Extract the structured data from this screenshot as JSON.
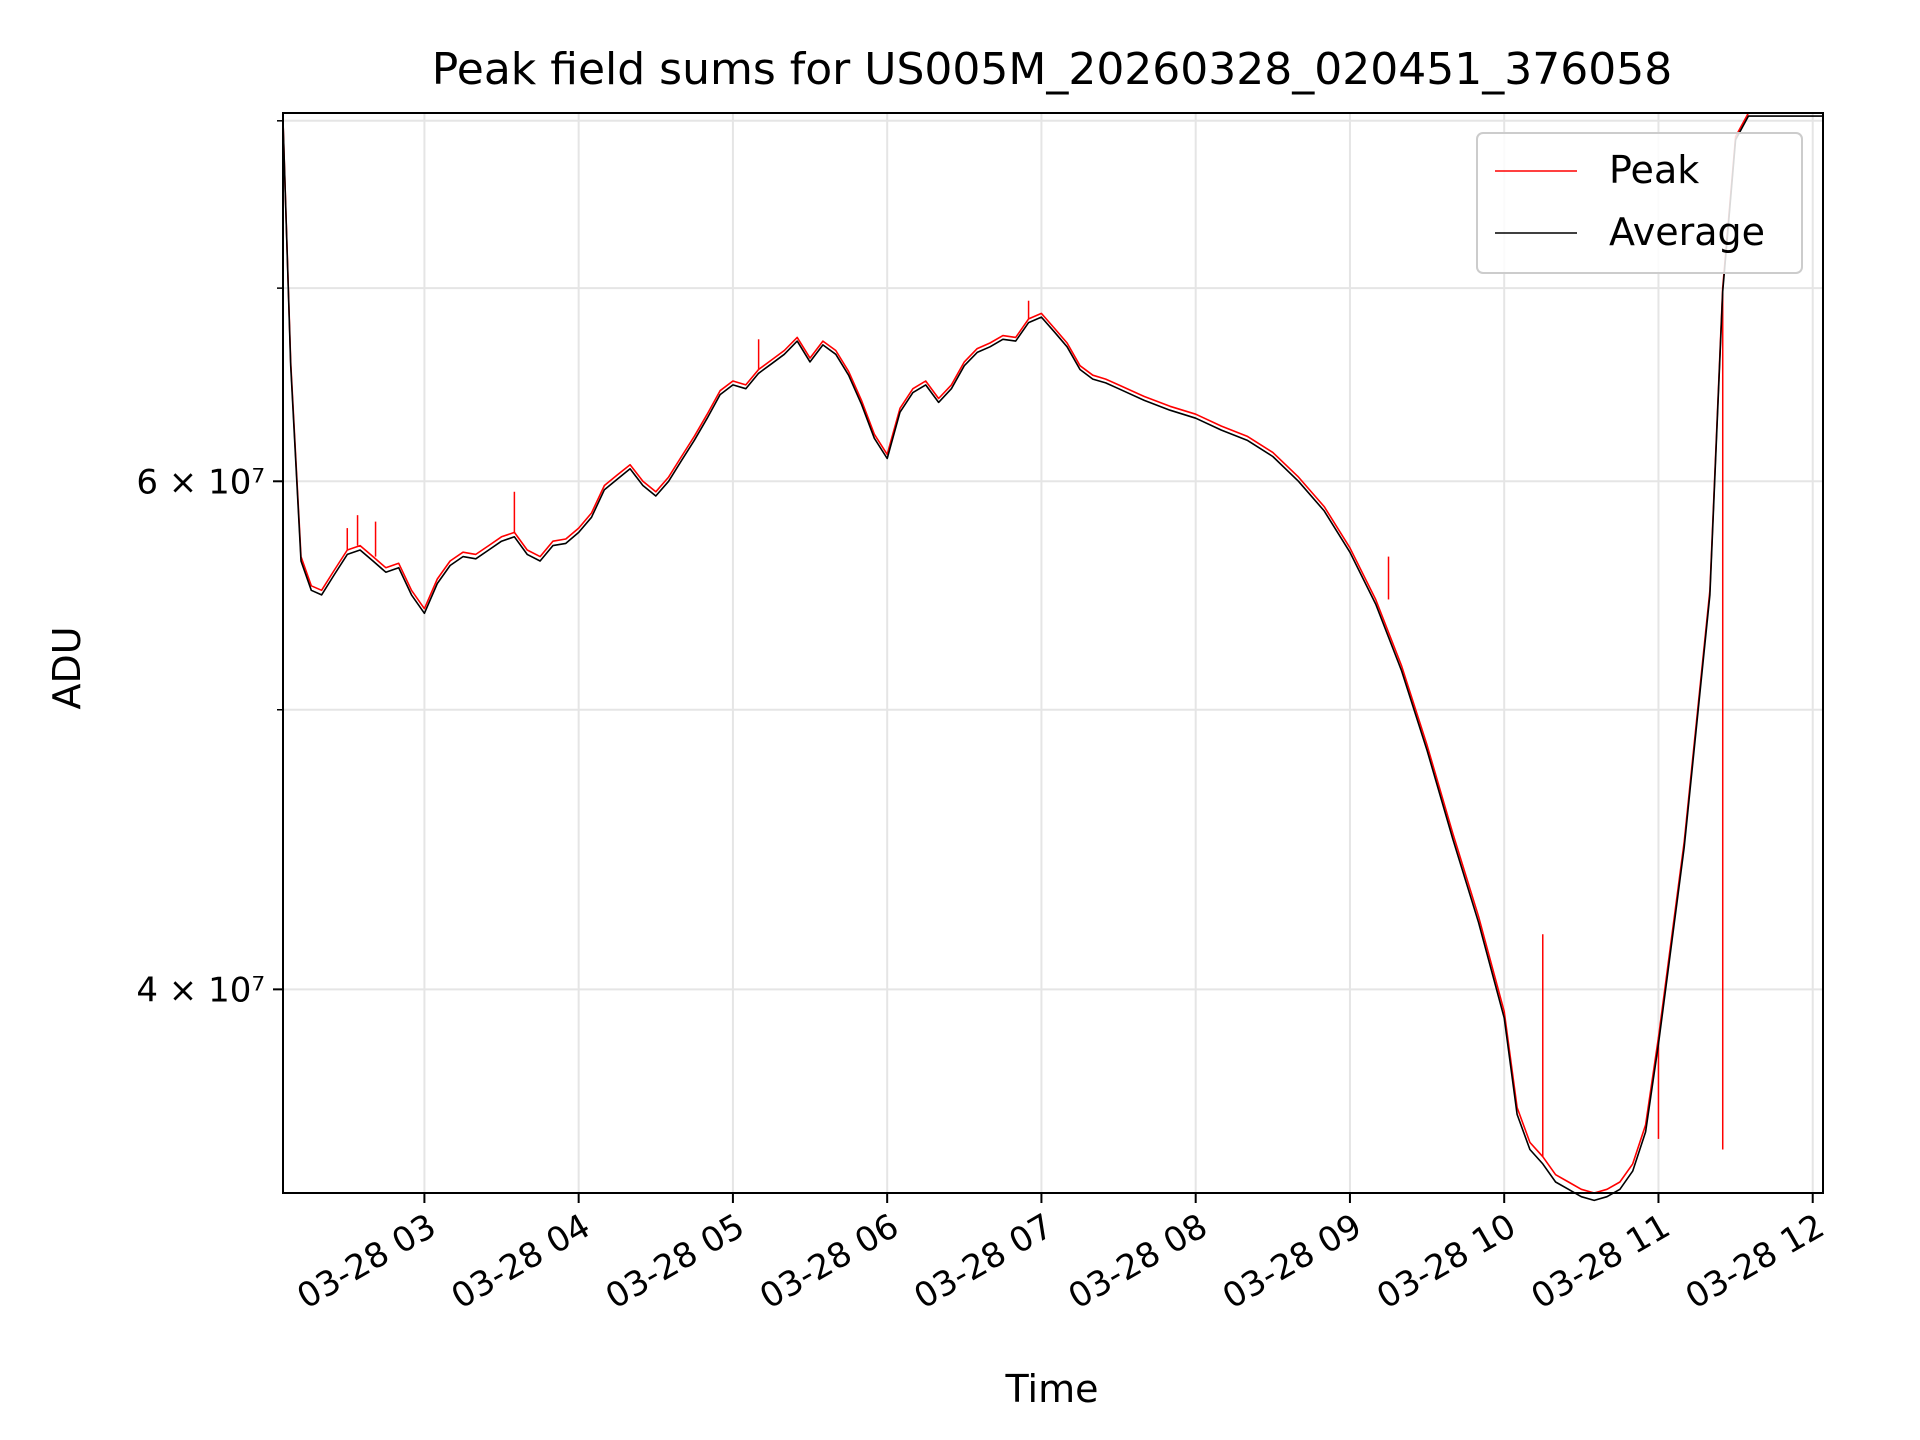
{
  "chart_data": {
    "type": "line",
    "title": "Peak field sums for US005M_20260328_020451_376058",
    "xlabel": "Time",
    "ylabel": "ADU",
    "yscale": "log",
    "ylim": [
      34000000,
      80500000
    ],
    "xlim": [
      "03-28 02:05",
      "03-28 12:04"
    ],
    "xticks": [
      {
        "x": "03-28 03:00",
        "label": "03-28 03"
      },
      {
        "x": "03-28 04:00",
        "label": "03-28 04"
      },
      {
        "x": "03-28 05:00",
        "label": "03-28 05"
      },
      {
        "x": "03-28 06:00",
        "label": "03-28 06"
      },
      {
        "x": "03-28 07:00",
        "label": "03-28 07"
      },
      {
        "x": "03-28 08:00",
        "label": "03-28 08"
      },
      {
        "x": "03-28 09:00",
        "label": "03-28 09"
      },
      {
        "x": "03-28 10:00",
        "label": "03-28 10"
      },
      {
        "x": "03-28 11:00",
        "label": "03-28 11"
      },
      {
        "x": "03-28 12:00",
        "label": "03-28 12"
      }
    ],
    "yticks_major": [
      {
        "value": 40000000,
        "label": "4 × 10⁷"
      },
      {
        "value": 60000000,
        "label": "6 × 10⁷"
      }
    ],
    "yticks_minor": [
      50000000,
      70000000,
      80000000
    ],
    "grid": true,
    "legend": {
      "position": "top-right"
    },
    "series": [
      {
        "name": "Peak",
        "color": "#ff0000",
        "x": [
          "03-28 02:05",
          "03-28 02:08",
          "03-28 02:12",
          "03-28 02:16",
          "03-28 02:20",
          "03-28 02:25",
          "03-28 02:30",
          "03-28 02:35",
          "03-28 02:40",
          "03-28 02:45",
          "03-28 02:50",
          "03-28 02:55",
          "03-28 03:00",
          "03-28 03:05",
          "03-28 03:10",
          "03-28 03:15",
          "03-28 03:20",
          "03-28 03:25",
          "03-28 03:30",
          "03-28 03:35",
          "03-28 03:40",
          "03-28 03:45",
          "03-28 03:50",
          "03-28 03:55",
          "03-28 04:00",
          "03-28 04:05",
          "03-28 04:10",
          "03-28 04:15",
          "03-28 04:20",
          "03-28 04:25",
          "03-28 04:30",
          "03-28 04:35",
          "03-28 04:40",
          "03-28 04:45",
          "03-28 04:50",
          "03-28 04:55",
          "03-28 05:00",
          "03-28 05:05",
          "03-28 05:10",
          "03-28 05:15",
          "03-28 05:20",
          "03-28 05:25",
          "03-28 05:30",
          "03-28 05:35",
          "03-28 05:40",
          "03-28 05:45",
          "03-28 05:50",
          "03-28 05:55",
          "03-28 06:00",
          "03-28 06:05",
          "03-28 06:10",
          "03-28 06:15",
          "03-28 06:20",
          "03-28 06:25",
          "03-28 06:30",
          "03-28 06:35",
          "03-28 06:40",
          "03-28 06:45",
          "03-28 06:50",
          "03-28 06:55",
          "03-28 07:00",
          "03-28 07:05",
          "03-28 07:10",
          "03-28 07:15",
          "03-28 07:20",
          "03-28 07:25",
          "03-28 07:30",
          "03-28 07:40",
          "03-28 07:50",
          "03-28 08:00",
          "03-28 08:10",
          "03-28 08:20",
          "03-28 08:30",
          "03-28 08:40",
          "03-28 08:50",
          "03-28 09:00",
          "03-28 09:10",
          "03-28 09:20",
          "03-28 09:30",
          "03-28 09:40",
          "03-28 09:50",
          "03-28 10:00",
          "03-28 10:05",
          "03-28 10:10",
          "03-28 10:15",
          "03-28 10:20",
          "03-28 10:25",
          "03-28 10:30",
          "03-28 10:35",
          "03-28 10:40",
          "03-28 10:45",
          "03-28 10:50",
          "03-28 10:55",
          "03-28 11:00",
          "03-28 11:10",
          "03-28 11:20",
          "03-28 11:25",
          "03-28 11:30",
          "03-28 11:35",
          "03-28 11:40",
          "03-28 11:45",
          "03-28 11:50",
          "03-28 11:55",
          "03-28 12:00",
          "03-28 12:04"
        ],
        "values": [
          80000000,
          66000000,
          56500000,
          55200000,
          55000000,
          55900000,
          56800000,
          57000000,
          56500000,
          56000000,
          56200000,
          55000000,
          54200000,
          55500000,
          56300000,
          56700000,
          56600000,
          57000000,
          57400000,
          57600000,
          56800000,
          56500000,
          57200000,
          57300000,
          57800000,
          58500000,
          59800000,
          60300000,
          60800000,
          60000000,
          59500000,
          60200000,
          61200000,
          62200000,
          63300000,
          64500000,
          65000000,
          64800000,
          65600000,
          66100000,
          66600000,
          67300000,
          66200000,
          67100000,
          66600000,
          65500000,
          64000000,
          62300000,
          61300000,
          63600000,
          64600000,
          65000000,
          64100000,
          64800000,
          66000000,
          66700000,
          67000000,
          67400000,
          67300000,
          68300000,
          68600000,
          67800000,
          67000000,
          65800000,
          65300000,
          65100000,
          64800000,
          64200000,
          63700000,
          63300000,
          62700000,
          62200000,
          61400000,
          60200000,
          58800000,
          56900000,
          54600000,
          51800000,
          48600000,
          45300000,
          42400000,
          39300000,
          36400000,
          35400000,
          35000000,
          34500000,
          34300000,
          34100000,
          34000000,
          34100000,
          34300000,
          34800000,
          35900000,
          38500000,
          45000000,
          55000000,
          70000000,
          79000000,
          80500000,
          80500000,
          80500000,
          80500000,
          80500000,
          80500000,
          80500000
        ],
        "spikes": [
          {
            "x": "03-28 02:30",
            "value": 57800000
          },
          {
            "x": "03-28 02:34",
            "value": 58400000
          },
          {
            "x": "03-28 02:41",
            "value": 58100000
          },
          {
            "x": "03-28 03:35",
            "value": 59500000
          },
          {
            "x": "03-28 05:10",
            "value": 67200000
          },
          {
            "x": "03-28 06:55",
            "value": 69300000
          },
          {
            "x": "03-28 09:15",
            "value": 56500000
          },
          {
            "x": "03-28 10:15",
            "value": 41800000
          },
          {
            "x": "03-28 11:00",
            "value": 35500000
          },
          {
            "x": "03-28 11:25",
            "value": 35200000
          }
        ]
      },
      {
        "name": "Average",
        "color": "#000000",
        "x": [
          "03-28 02:05",
          "03-28 02:08",
          "03-28 02:12",
          "03-28 02:16",
          "03-28 02:20",
          "03-28 02:25",
          "03-28 02:30",
          "03-28 02:35",
          "03-28 02:40",
          "03-28 02:45",
          "03-28 02:50",
          "03-28 02:55",
          "03-28 03:00",
          "03-28 03:05",
          "03-28 03:10",
          "03-28 03:15",
          "03-28 03:20",
          "03-28 03:25",
          "03-28 03:30",
          "03-28 03:35",
          "03-28 03:40",
          "03-28 03:45",
          "03-28 03:50",
          "03-28 03:55",
          "03-28 04:00",
          "03-28 04:05",
          "03-28 04:10",
          "03-28 04:15",
          "03-28 04:20",
          "03-28 04:25",
          "03-28 04:30",
          "03-28 04:35",
          "03-28 04:40",
          "03-28 04:45",
          "03-28 04:50",
          "03-28 04:55",
          "03-28 05:00",
          "03-28 05:05",
          "03-28 05:10",
          "03-28 05:15",
          "03-28 05:20",
          "03-28 05:25",
          "03-28 05:30",
          "03-28 05:35",
          "03-28 05:40",
          "03-28 05:45",
          "03-28 05:50",
          "03-28 05:55",
          "03-28 06:00",
          "03-28 06:05",
          "03-28 06:10",
          "03-28 06:15",
          "03-28 06:20",
          "03-28 06:25",
          "03-28 06:30",
          "03-28 06:35",
          "03-28 06:40",
          "03-28 06:45",
          "03-28 06:50",
          "03-28 06:55",
          "03-28 07:00",
          "03-28 07:05",
          "03-28 07:10",
          "03-28 07:15",
          "03-28 07:20",
          "03-28 07:25",
          "03-28 07:30",
          "03-28 07:40",
          "03-28 07:50",
          "03-28 08:00",
          "03-28 08:10",
          "03-28 08:20",
          "03-28 08:30",
          "03-28 08:40",
          "03-28 08:50",
          "03-28 09:00",
          "03-28 09:10",
          "03-28 09:20",
          "03-28 09:30",
          "03-28 09:40",
          "03-28 09:50",
          "03-28 10:00",
          "03-28 10:05",
          "03-28 10:10",
          "03-28 10:15",
          "03-28 10:20",
          "03-28 10:25",
          "03-28 10:30",
          "03-28 10:35",
          "03-28 10:40",
          "03-28 10:45",
          "03-28 10:50",
          "03-28 10:55",
          "03-28 11:00",
          "03-28 11:10",
          "03-28 11:20",
          "03-28 11:25",
          "03-28 11:30",
          "03-28 11:35",
          "03-28 11:40",
          "03-28 11:45",
          "03-28 11:50",
          "03-28 11:55",
          "03-28 12:00",
          "03-28 12:04"
        ],
        "values": [
          80000000,
          65800000,
          56300000,
          55000000,
          54800000,
          55700000,
          56600000,
          56800000,
          56300000,
          55800000,
          56000000,
          54800000,
          54000000,
          55300000,
          56100000,
          56500000,
          56400000,
          56800000,
          57200000,
          57400000,
          56600000,
          56300000,
          57000000,
          57100000,
          57600000,
          58300000,
          59600000,
          60100000,
          60600000,
          59800000,
          59300000,
          60000000,
          61000000,
          62000000,
          63100000,
          64300000,
          64800000,
          64600000,
          65400000,
          65900000,
          66400000,
          67100000,
          66000000,
          66900000,
          66400000,
          65300000,
          63800000,
          62100000,
          61100000,
          63400000,
          64400000,
          64800000,
          63900000,
          64600000,
          65800000,
          66500000,
          66800000,
          67200000,
          67100000,
          68100000,
          68400000,
          67600000,
          66800000,
          65600000,
          65100000,
          64900000,
          64600000,
          64000000,
          63500000,
          63100000,
          62500000,
          62000000,
          61200000,
          60000000,
          58600000,
          56700000,
          54400000,
          51600000,
          48400000,
          45100000,
          42200000,
          39100000,
          36200000,
          35200000,
          34800000,
          34300000,
          34100000,
          33900000,
          33800000,
          33900000,
          34100000,
          34600000,
          35700000,
          38300000,
          44800000,
          54800000,
          69800000,
          78800000,
          80300000,
          80300000,
          80300000,
          80300000,
          80300000,
          80300000,
          80300000
        ]
      }
    ]
  }
}
